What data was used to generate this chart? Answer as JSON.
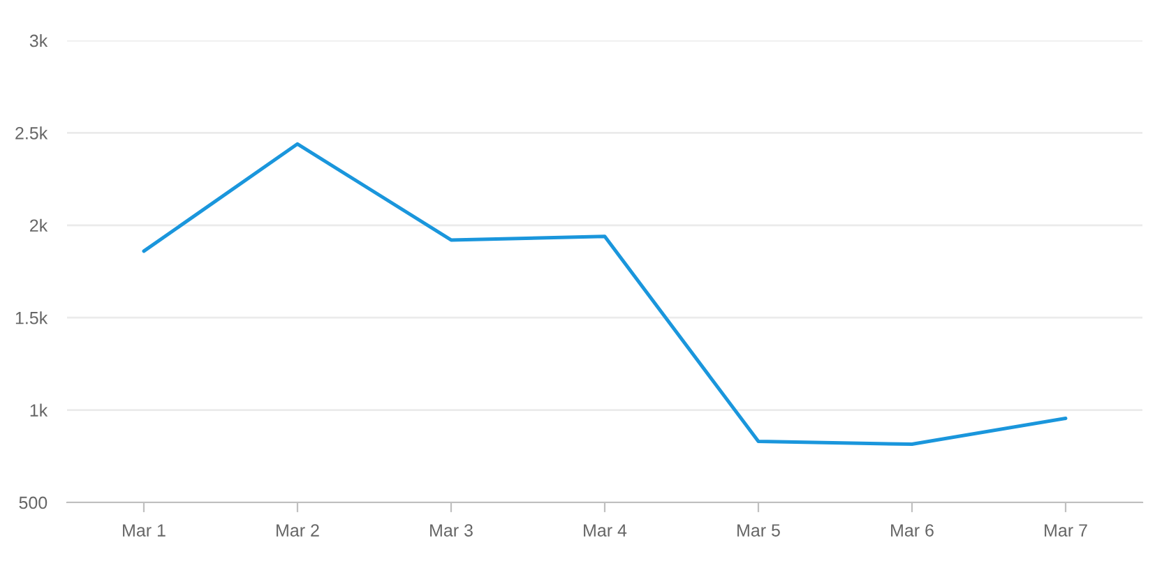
{
  "chart_data": {
    "type": "line",
    "categories": [
      "Mar 1",
      "Mar 2",
      "Mar 3",
      "Mar 4",
      "Mar 5",
      "Mar 6",
      "Mar 7"
    ],
    "series": [
      {
        "color": "#1a96dc",
        "values": [
          1860,
          2440,
          1920,
          1940,
          830,
          815,
          955
        ]
      }
    ],
    "ylim": [
      500,
      3000
    ],
    "yticks": [
      500,
      {
        "value": 1000,
        "label": "1k"
      },
      {
        "value": 1500,
        "label": "1.5k"
      },
      {
        "value": 2000,
        "label": "2k"
      },
      {
        "value": 2500,
        "label": "2.5k"
      },
      {
        "value": 3000,
        "label": "3k"
      }
    ],
    "grid": "y"
  }
}
